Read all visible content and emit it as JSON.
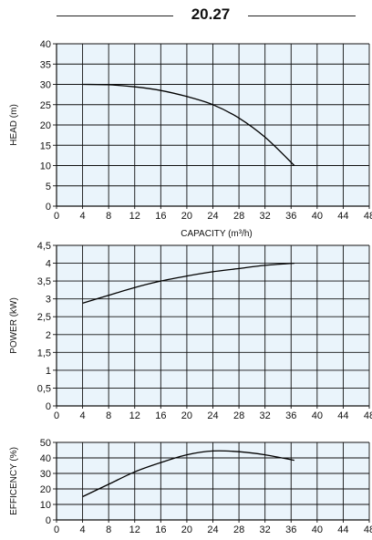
{
  "header": {
    "model": "20.27"
  },
  "chart_data": [
    {
      "type": "line",
      "ylabel": "HEAD (m)",
      "xlabel": "CAPACITY (m³/h)",
      "xlim": [
        0,
        48
      ],
      "ylim": [
        0,
        40
      ],
      "x_ticks": [
        "0",
        "4",
        "8",
        "12",
        "16",
        "20",
        "24",
        "28",
        "32",
        "36",
        "40",
        "44",
        "48"
      ],
      "y_ticks": [
        "0",
        "5",
        "10",
        "15",
        "20",
        "25",
        "30",
        "35",
        "40"
      ],
      "grid": true,
      "series": [
        {
          "x": [
            4,
            8,
            12,
            16,
            20,
            24,
            28,
            32,
            36.5
          ],
          "y": [
            30,
            29.9,
            29.4,
            28.5,
            27,
            25,
            21.7,
            17,
            10
          ]
        }
      ]
    },
    {
      "type": "line",
      "ylabel": "POWER (kW)",
      "xlim": [
        0,
        48
      ],
      "ylim": [
        0,
        4.5
      ],
      "x_ticks": [
        "0",
        "4",
        "8",
        "12",
        "16",
        "20",
        "24",
        "28",
        "32",
        "36",
        "40",
        "44",
        "48"
      ],
      "y_ticks": [
        "0",
        "0,5",
        "1",
        "1,5",
        "2",
        "2,5",
        "3",
        "3,5",
        "4",
        "4,5"
      ],
      "grid": true,
      "series": [
        {
          "x": [
            4,
            8,
            12,
            16,
            20,
            24,
            28,
            32,
            36.5
          ],
          "y": [
            2.88,
            3.1,
            3.32,
            3.5,
            3.64,
            3.76,
            3.85,
            3.94,
            4.0
          ]
        }
      ]
    },
    {
      "type": "line",
      "ylabel": "EFFICENCY (%)",
      "xlim": [
        0,
        48
      ],
      "ylim": [
        0,
        50
      ],
      "x_ticks": [
        "0",
        "4",
        "8",
        "12",
        "16",
        "20",
        "24",
        "28",
        "32",
        "36",
        "40",
        "44",
        "48"
      ],
      "y_ticks": [
        "0",
        "10",
        "20",
        "30",
        "40",
        "50"
      ],
      "grid": true,
      "series": [
        {
          "x": [
            4,
            8,
            12,
            16,
            20,
            24,
            28,
            32,
            36.5
          ],
          "y": [
            15,
            23,
            31,
            37,
            42,
            44.5,
            44,
            42,
            38.5
          ]
        }
      ]
    }
  ]
}
